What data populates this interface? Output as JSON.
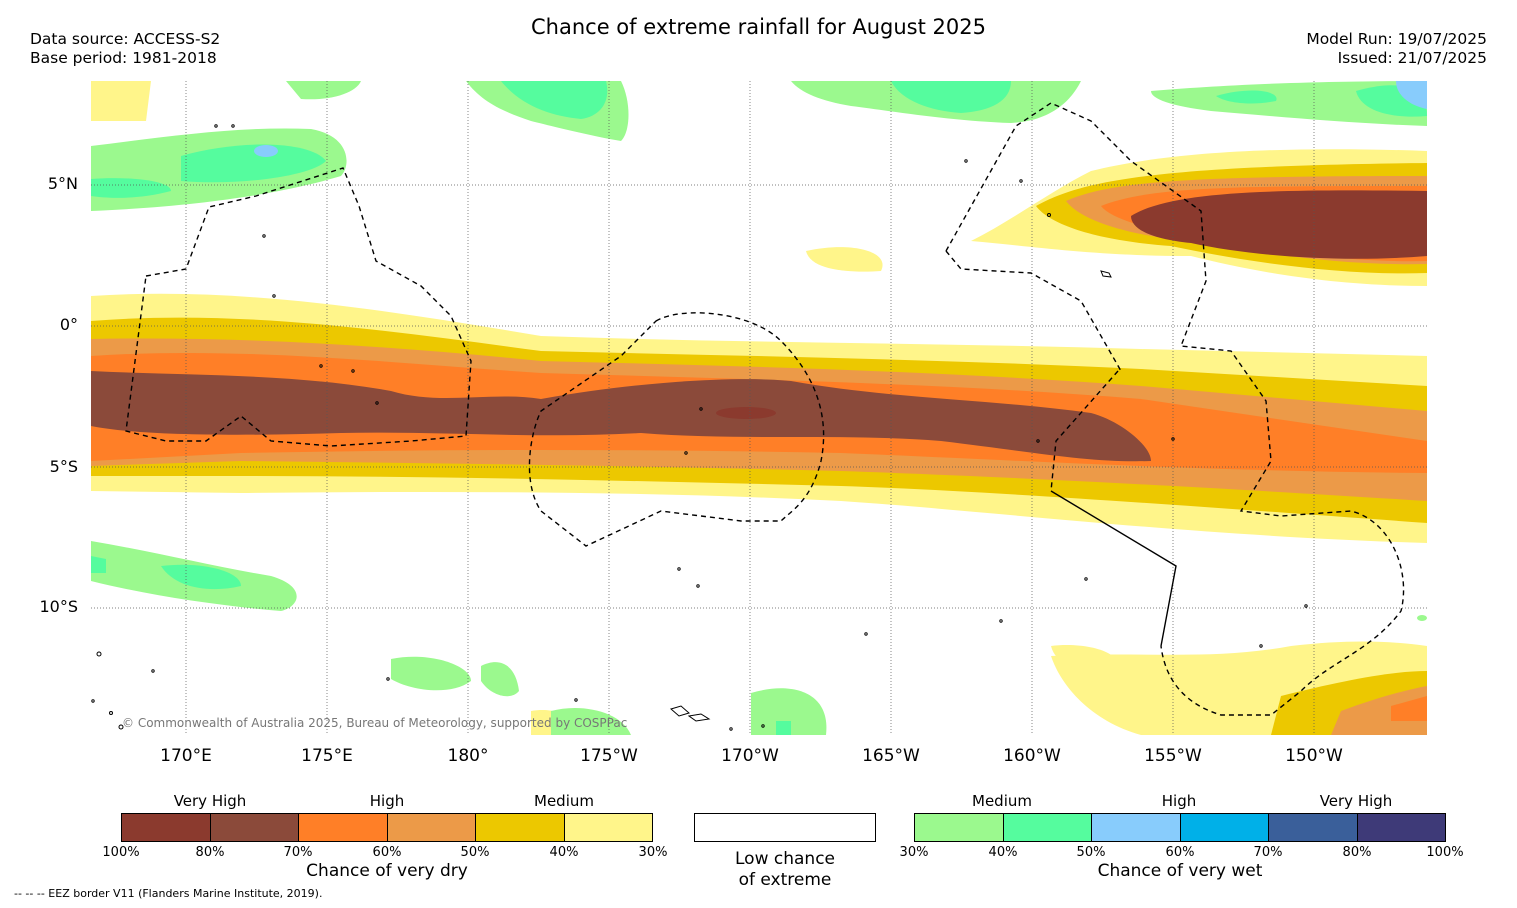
{
  "title": "Chance of extreme rainfall for August 2025",
  "info": {
    "source_line": "Data source: ACCESS-S2",
    "base_line": "Base period: 1981-2018",
    "model_run": "Model Run: 19/07/2025",
    "issued": "Issued: 21/07/2025"
  },
  "map": {
    "lat_labels": [
      "5°N",
      "0°",
      "5°S",
      "10°S"
    ],
    "lon_labels": [
      "170°E",
      "175°E",
      "180°",
      "175°W",
      "170°W",
      "165°W",
      "160°W",
      "155°W",
      "150°W"
    ],
    "copyright": "© Commonwealth of Australia 2025, Bureau of Meteorology, supported by COSPPac"
  },
  "legend": {
    "dry": {
      "categories": [
        "Very High",
        "High",
        "Medium"
      ],
      "ticks": [
        "100%",
        "80%",
        "70%",
        "60%",
        "50%",
        "40%",
        "30%"
      ],
      "colors": [
        "#8b3a2e",
        "#8b4a3a",
        "#ff7f27",
        "#ec9a48",
        "#ecc800",
        "#fff58a"
      ],
      "label": "Chance of very dry"
    },
    "neutral": {
      "label_line1": "Low chance",
      "label_line2": "of extreme",
      "color": "#ffffff"
    },
    "wet": {
      "categories": [
        "Medium",
        "High",
        "Very High"
      ],
      "ticks": [
        "30%",
        "40%",
        "50%",
        "60%",
        "70%",
        "80%",
        "100%"
      ],
      "colors": [
        "#9bf98e",
        "#55fc9e",
        "#88ccfc",
        "#00b0e8",
        "#3a5f9a",
        "#3e3a78"
      ],
      "label": "Chance of very wet"
    }
  },
  "footnote": "-- -- -- EEZ border V11 (Flanders Marine Institute, 2019)."
}
